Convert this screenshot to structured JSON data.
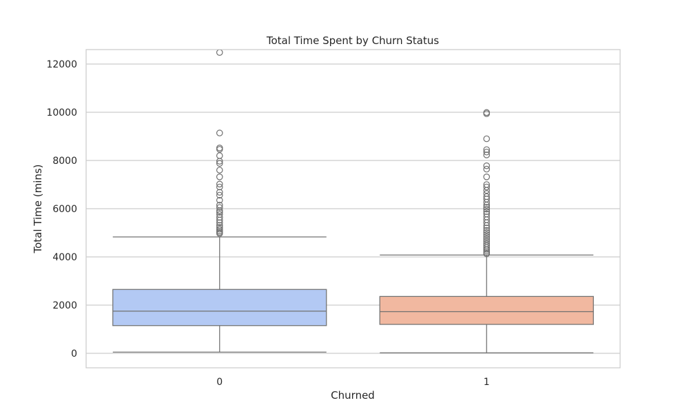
{
  "chart_data": {
    "type": "box",
    "title": "Total Time Spent by Churn Status",
    "xlabel": "Churned",
    "ylabel": "Total Time (mins)",
    "ylim": [
      -600,
      12600
    ],
    "yticks": [
      0,
      2000,
      4000,
      6000,
      8000,
      10000,
      12000
    ],
    "grid": true,
    "categories": [
      "0",
      "1"
    ],
    "colors": [
      "#b3c9f4",
      "#f1b8a0"
    ],
    "boxes": [
      {
        "category": "0",
        "whisker_low": 50,
        "q1": 1150,
        "median": 1750,
        "q3": 2650,
        "whisker_high": 4830,
        "outliers": [
          4970,
          5020,
          5080,
          5150,
          5230,
          5310,
          5420,
          5530,
          5640,
          5760,
          5850,
          5920,
          6050,
          6150,
          6350,
          6560,
          6680,
          6900,
          7020,
          7320,
          7600,
          7880,
          7970,
          8200,
          8460,
          8520,
          9140,
          12480
        ]
      },
      {
        "category": "1",
        "whisker_low": 20,
        "q1": 1200,
        "median": 1730,
        "q3": 2360,
        "whisker_high": 4080,
        "outliers": [
          4130,
          4180,
          4250,
          4320,
          4400,
          4480,
          4560,
          4650,
          4740,
          4830,
          4920,
          5010,
          5100,
          5200,
          5300,
          5420,
          5540,
          5660,
          5780,
          5880,
          5980,
          6060,
          6150,
          6270,
          6400,
          6500,
          6630,
          6760,
          6900,
          7000,
          7320,
          7640,
          7780,
          8230,
          8350,
          8450,
          8900,
          9940,
          9990
        ]
      }
    ]
  }
}
